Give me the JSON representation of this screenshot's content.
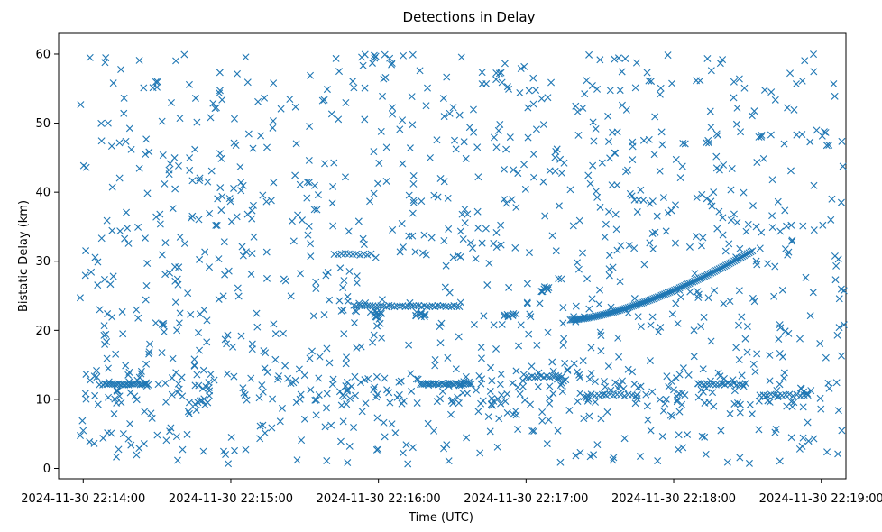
{
  "chart_data": {
    "type": "scatter",
    "title": "Detections in Delay",
    "xlabel": "Time (UTC)",
    "ylabel": "Bistatic Delay (km)",
    "marker": "x",
    "color": "#1f77b4",
    "grid": false,
    "xlim": [
      "2024-11-30 22:13:50",
      "2024-11-30 22:19:10"
    ],
    "ylim": [
      -1.5,
      63
    ],
    "xticks": [
      "2024-11-30 22:14:00",
      "2024-11-30 22:15:00",
      "2024-11-30 22:16:00",
      "2024-11-30 22:17:00",
      "2024-11-30 22:18:00",
      "2024-11-30 22:19:00"
    ],
    "yticks": [
      0,
      10,
      20,
      30,
      40,
      50,
      60
    ],
    "features": {
      "rising_track": {
        "x_start": "2024-11-30 22:17:18",
        "x_end": "2024-11-30 22:18:32",
        "y_start": 21.5,
        "y_end": 31.5
      },
      "flat_track_low": {
        "x_start": "2024-11-30 22:14:08",
        "x_end": "2024-11-30 22:14:27",
        "y": 12.2
      },
      "flat_track_mid": {
        "x_start": "2024-11-30 22:15:50",
        "x_end": "2024-11-30 22:16:33",
        "y": 23.5
      }
    }
  }
}
